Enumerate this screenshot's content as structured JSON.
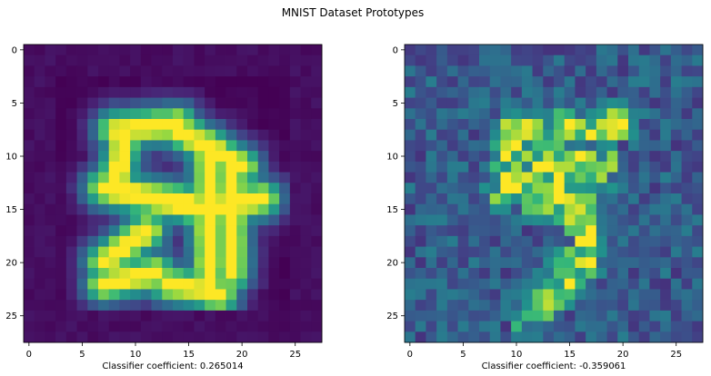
{
  "figure": {
    "title": "MNIST Dataset Prototypes"
  },
  "chart_data": [
    {
      "type": "heatmap",
      "title": "",
      "caption": "Classifier coefficient: 0.265014",
      "xlabel": "",
      "ylabel": "",
      "xlim": [
        -0.5,
        27.5
      ],
      "ylim": [
        27.5,
        -0.5
      ],
      "xticks": [
        0,
        5,
        10,
        15,
        20,
        25
      ],
      "yticks": [
        0,
        5,
        10,
        15,
        20,
        25
      ],
      "grid_size": [
        28,
        28
      ],
      "colormap": "viridis",
      "grid": false,
      "digit_shape": "5",
      "strokes": [
        {
          "from": [
            7,
            13
          ],
          "to": [
            17,
            15
          ]
        },
        {
          "from": [
            17,
            15
          ],
          "to": [
            22,
            14
          ]
        },
        {
          "from": [
            14,
            7.5
          ],
          "to": [
            20,
            11
          ]
        },
        {
          "from": [
            8,
            7.5
          ],
          "to": [
            14,
            7
          ]
        },
        {
          "from": [
            9,
            8
          ],
          "to": [
            8,
            13
          ]
        },
        {
          "from": [
            17,
            9
          ],
          "to": [
            17,
            23
          ]
        },
        {
          "from": [
            19,
            12
          ],
          "to": [
            19,
            21
          ]
        },
        {
          "from": [
            12,
            21
          ],
          "to": [
            7,
            22
          ]
        },
        {
          "from": [
            7,
            20
          ],
          "to": [
            11,
            17
          ]
        },
        {
          "from": [
            18,
            23
          ],
          "to": [
            13,
            22
          ]
        }
      ]
    },
    {
      "type": "heatmap",
      "title": "",
      "caption": "Classifier coefficient: -0.359061",
      "xlabel": "",
      "ylabel": "",
      "xlim": [
        -0.5,
        27.5
      ],
      "ylim": [
        27.5,
        -0.5
      ],
      "xticks": [
        0,
        5,
        10,
        15,
        20,
        25
      ],
      "yticks": [
        0,
        5,
        10,
        15,
        20,
        25
      ],
      "grid_size": [
        28,
        28
      ],
      "colormap": "viridis",
      "grid": false,
      "digit_shape": "5",
      "strokes": [
        {
          "from": [
            9,
            8
          ],
          "to": [
            20,
            7
          ]
        },
        {
          "from": [
            10,
            8
          ],
          "to": [
            9,
            13
          ]
        },
        {
          "from": [
            9,
            13
          ],
          "to": [
            16,
            14
          ]
        },
        {
          "from": [
            16,
            14
          ],
          "to": [
            17,
            19
          ]
        },
        {
          "from": [
            17,
            19
          ],
          "to": [
            13,
            24
          ]
        },
        {
          "from": [
            13,
            24
          ],
          "to": [
            11,
            25
          ]
        },
        {
          "from": [
            12,
            11
          ],
          "to": [
            18,
            11
          ]
        }
      ]
    }
  ]
}
